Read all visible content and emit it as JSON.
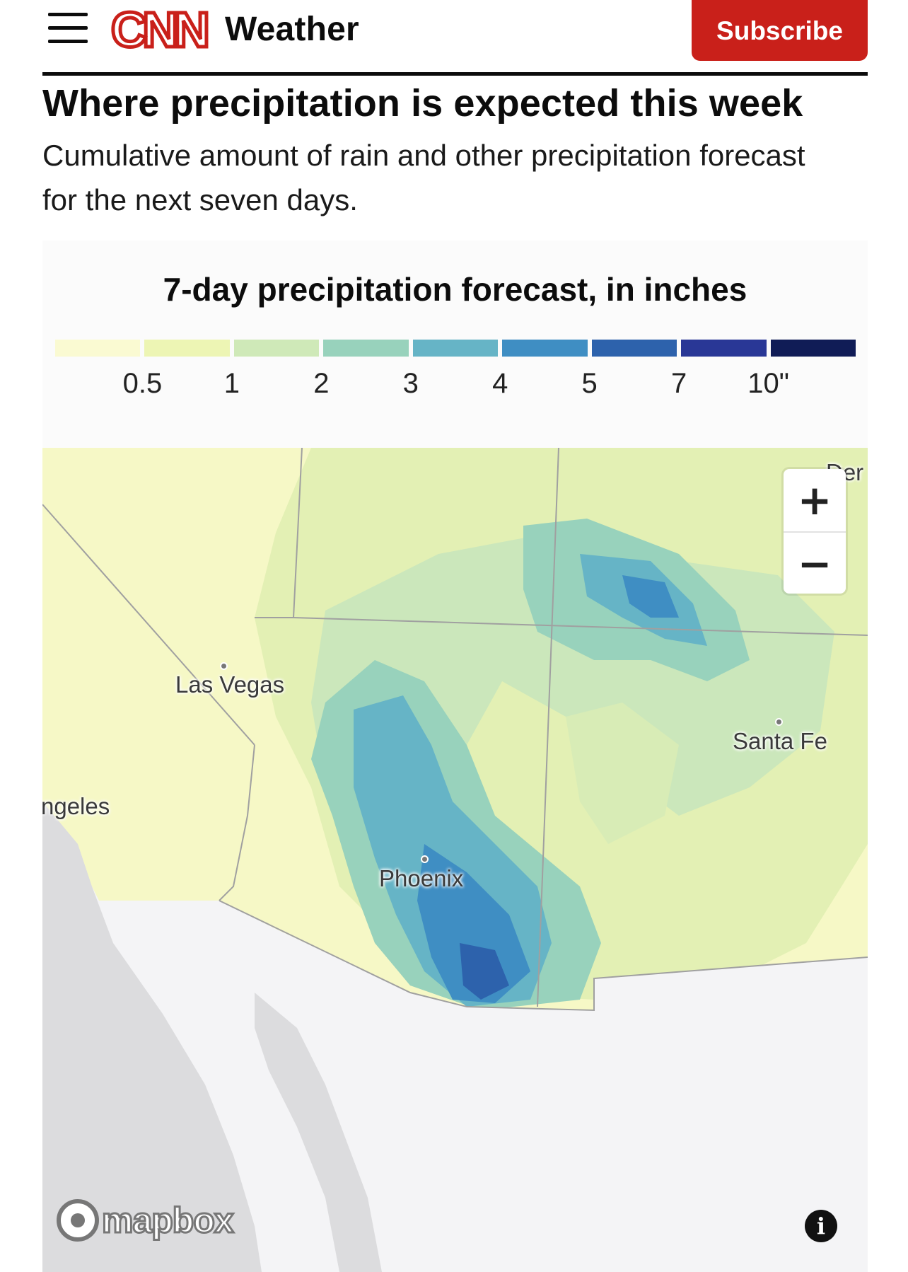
{
  "header": {
    "logo_text": "CNN",
    "section": "Weather",
    "subscribe_label": "Subscribe"
  },
  "article": {
    "headline": "Where precipitation is expected this week",
    "dek": "Cumulative amount of rain and other precipitation forecast for the next seven days."
  },
  "chart": {
    "title": "7-day precipitation forecast, in inches",
    "legend": {
      "colors": [
        "#fafad2",
        "#edf5b4",
        "#cfe9b8",
        "#98d2bc",
        "#66b4c6",
        "#3f8ec3",
        "#2d62ac",
        "#293796",
        "#101c56"
      ],
      "ticks": [
        "0.5",
        "1",
        "2",
        "3",
        "4",
        "5",
        "7",
        "10\""
      ]
    }
  },
  "map": {
    "cities": [
      {
        "name": "Las Vegas"
      },
      {
        "name": "Santa Fe"
      },
      {
        "name": "Phoenix"
      },
      {
        "name": "ngeles"
      },
      {
        "name": "Der"
      }
    ],
    "zoom_in_label": "+",
    "zoom_out_label": "−",
    "info_label": "i",
    "attribution": "mapbox"
  }
}
